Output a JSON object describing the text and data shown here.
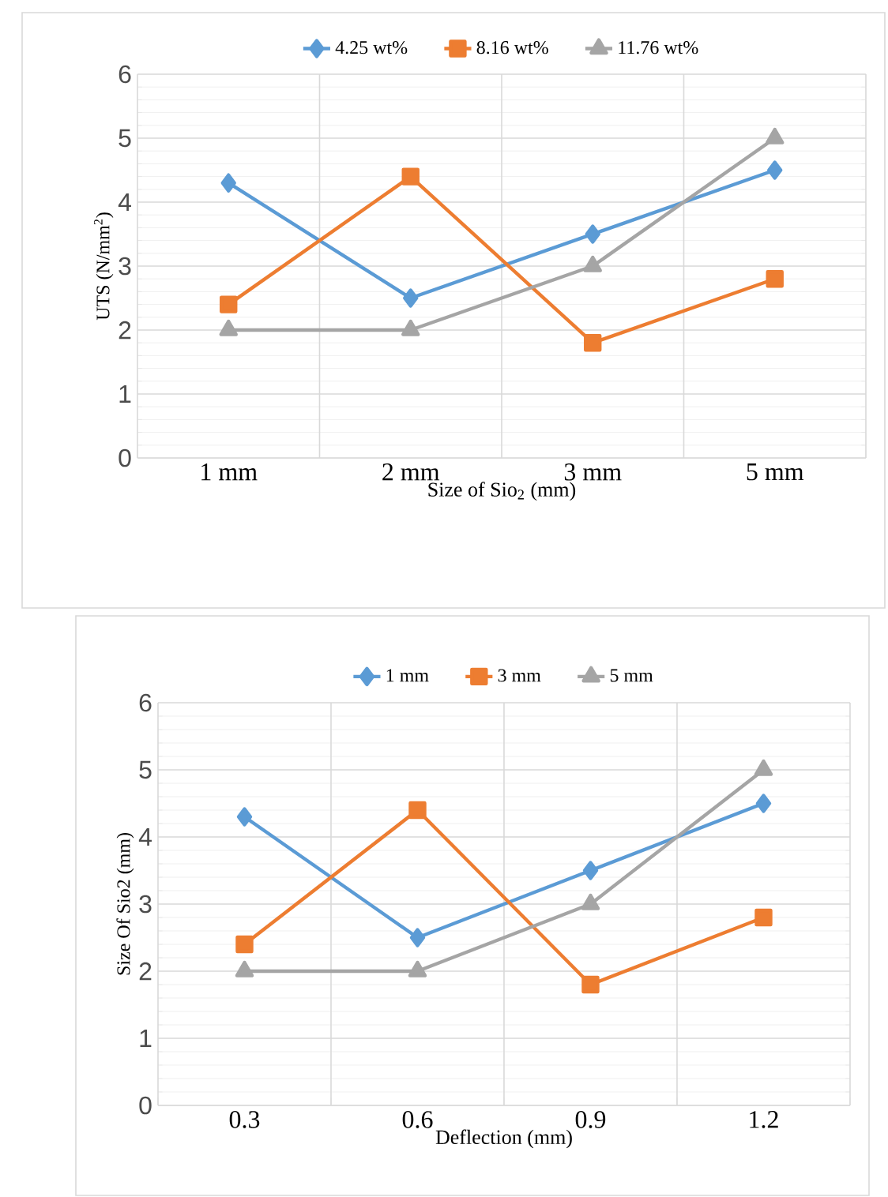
{
  "chart_data": [
    {
      "type": "line",
      "categories": [
        "1  mm",
        "2  mm",
        "3  mm",
        "5  mm"
      ],
      "xlabel": "Size of Sio$_{2}$ (mm)",
      "ylabel": "UTS (N/mm$^{2}$)",
      "ylim": [
        0,
        6
      ],
      "yticks": [
        0,
        1,
        2,
        3,
        4,
        5,
        6
      ],
      "grid": true,
      "legend": "top",
      "line_style": "solid",
      "series": [
        {
          "name": "4.25 wt%",
          "color": "#5b9bd5",
          "marker": "diamond",
          "values": [
            4.3,
            2.5,
            3.5,
            4.5
          ]
        },
        {
          "name": "8.16 wt%",
          "color": "#ed7d31",
          "marker": "square",
          "values": [
            2.4,
            4.4,
            1.8,
            2.8
          ]
        },
        {
          "name": "11.76 wt%",
          "color": "#a5a5a5",
          "marker": "triangle",
          "values": [
            2,
            2,
            3,
            5
          ]
        }
      ]
    },
    {
      "type": "line",
      "categories": [
        "0.3",
        "0.6",
        "0.9",
        "1.2"
      ],
      "xlabel": "Deflection (mm)",
      "ylabel": "Size Of Sio2 (mm)",
      "ylim": [
        0,
        6
      ],
      "yticks": [
        0,
        1,
        2,
        3,
        4,
        5,
        6
      ],
      "grid": true,
      "legend": "top",
      "line_style": "solid",
      "series": [
        {
          "name": "1 mm",
          "color": "#5b9bd5",
          "marker": "diamond",
          "values": [
            4.3,
            2.5,
            3.5,
            4.5
          ]
        },
        {
          "name": "3 mm",
          "color": "#ed7d31",
          "marker": "square",
          "values": [
            2.4,
            4.4,
            1.8,
            2.8
          ]
        },
        {
          "name": "5 mm",
          "color": "#a5a5a5",
          "marker": "triangle",
          "values": [
            2,
            2,
            3,
            5
          ]
        }
      ]
    }
  ]
}
